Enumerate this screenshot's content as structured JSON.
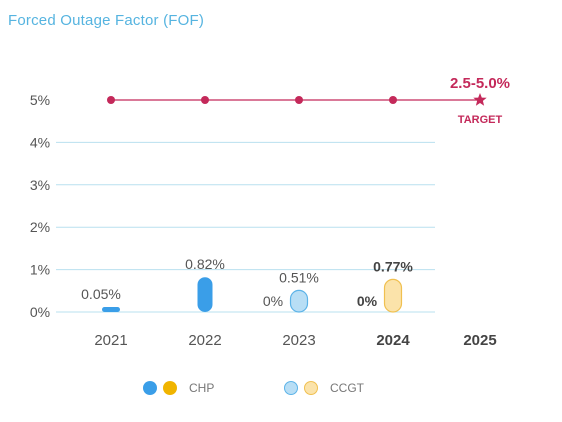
{
  "header": {
    "title": "Forced Outage Factor (FOF)"
  },
  "colors": {
    "title": "#56b4e0",
    "target": "#c4295a",
    "chp_fill": "#3a9ee8",
    "chp_alt": "#f0b400",
    "ccgt_fill": "#b8def5",
    "ccgt_stroke": "#5cb3e8",
    "ccgt_alt_fill": "#fbe3aa",
    "ccgt_alt_stroke": "#f0c050",
    "grid": "#b9e0ef",
    "text": "#555555",
    "text_dark": "#444444"
  },
  "chart_data": {
    "type": "bar",
    "categories": [
      "2021",
      "2022",
      "2023",
      "2024",
      "2025"
    ],
    "bold_categories": [
      "2024",
      "2025"
    ],
    "y_ticks": [
      "0%",
      "1%",
      "2%",
      "3%",
      "4%",
      "5%"
    ],
    "ylim": [
      0,
      5
    ],
    "series": [
      {
        "name": "CHP",
        "values": [
          0.05,
          0.82,
          0,
          0,
          null
        ],
        "labels": [
          "0.05%",
          "0.82%",
          "",
          "",
          ""
        ]
      },
      {
        "name": "CCGT",
        "values": [
          null,
          null,
          0.51,
          0.77,
          null
        ],
        "labels": [
          "",
          "",
          "0.51%",
          "0.77%",
          ""
        ],
        "bold_labels": [
          "0.77%"
        ]
      }
    ],
    "extra_labels": [
      {
        "category": "2023",
        "text": "0%",
        "bold": false
      },
      {
        "category": "2024",
        "text": "0%",
        "bold": true
      }
    ],
    "target": {
      "value": 5,
      "points": [
        "2021",
        "2022",
        "2023",
        "2024",
        "2025"
      ],
      "range_label": "2.5-5.0%",
      "label": "TARGET"
    },
    "legend": [
      {
        "label": "CHP",
        "style": "solid"
      },
      {
        "label": "CCGT",
        "style": "light"
      }
    ]
  }
}
